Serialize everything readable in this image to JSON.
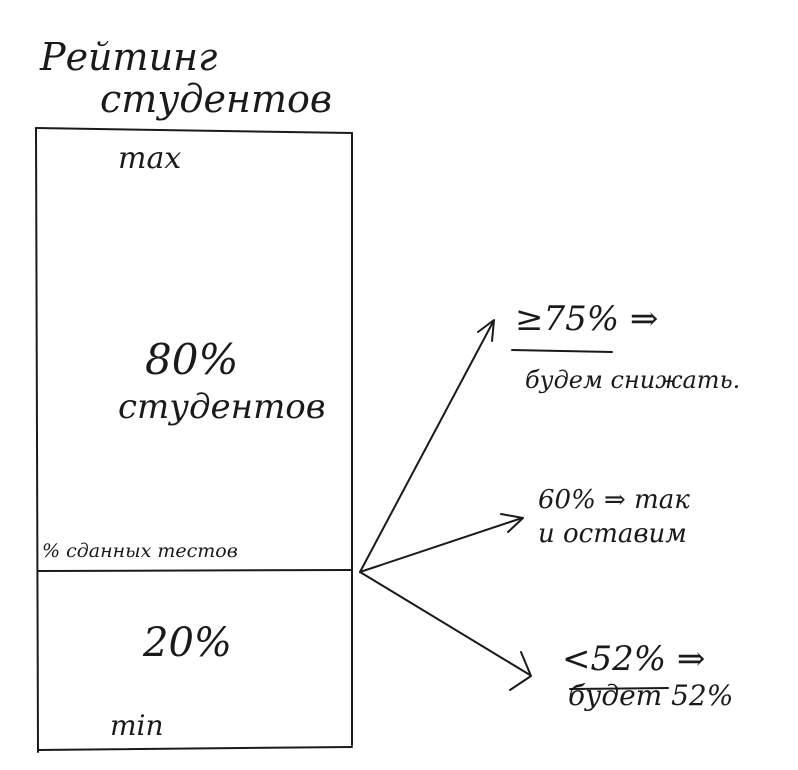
{
  "title_line1": "Рейтинг",
  "title_line2": "студентов",
  "box": {
    "top_label": "max",
    "upper_percent": "80%",
    "upper_caption": "студентов",
    "divider_label": "% сданных тестов",
    "lower_percent": "20%",
    "bottom_label": "min"
  },
  "outcomes": [
    {
      "line1": "≥75% ⇒",
      "line2": "будем снижать."
    },
    {
      "line1": "60% ⇒ так",
      "line2": "и оставим"
    },
    {
      "line1": "<52% ⇒",
      "line2": "будет 52%"
    }
  ]
}
